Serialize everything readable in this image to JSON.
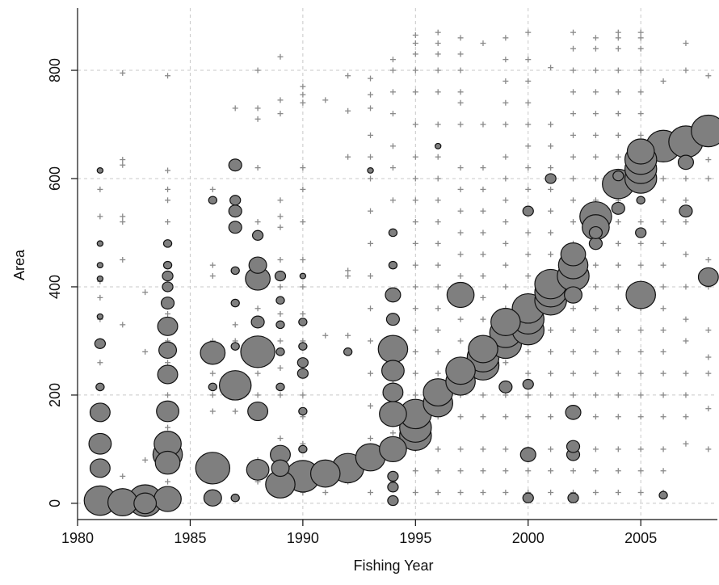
{
  "chart_data": {
    "type": "scatter",
    "title": "",
    "xlabel": "Fishing Year",
    "ylabel": "Area",
    "xlim": [
      1980,
      2008.4
    ],
    "ylim": [
      -30,
      915
    ],
    "xticks": [
      1980,
      1985,
      1990,
      1995,
      2000,
      2005
    ],
    "yticks": [
      0,
      200,
      400,
      600,
      800
    ],
    "grid": true,
    "marker_color": "#7f7f7f",
    "plus_color": "#8a8a8a",
    "plus_markers": [
      {
        "year": 1981,
        "areas": [
          10,
          60,
          110,
          165,
          215,
          260,
          300,
          340,
          380,
          410,
          440,
          480,
          530,
          580,
          615
        ]
      },
      {
        "year": 1982,
        "areas": [
          50,
          330,
          450,
          520,
          530,
          625,
          635,
          795
        ]
      },
      {
        "year": 1983,
        "areas": [
          80,
          280,
          390
        ]
      },
      {
        "year": 1984,
        "areas": [
          40,
          75,
          100,
          140,
          200,
          260,
          300,
          350,
          400,
          440,
          480,
          520,
          560,
          580,
          615,
          790
        ]
      },
      {
        "year": 1986,
        "areas": [
          170,
          200,
          240,
          280,
          300,
          420,
          440,
          560,
          580
        ]
      },
      {
        "year": 1987,
        "areas": [
          170,
          240,
          300,
          330,
          430,
          560,
          630,
          730
        ]
      },
      {
        "year": 1988,
        "areas": [
          40,
          80,
          200,
          240,
          300,
          360,
          400,
          450,
          500,
          520,
          620,
          710,
          730,
          800
        ]
      },
      {
        "year": 1989,
        "areas": [
          20,
          60,
          120,
          200,
          250,
          300,
          350,
          400,
          450,
          510,
          530,
          560,
          720,
          745,
          825
        ]
      },
      {
        "year": 1990,
        "areas": [
          20,
          60,
          110,
          160,
          200,
          240,
          300,
          350,
          400,
          450,
          520,
          580,
          620,
          740,
          755,
          770
        ]
      },
      {
        "year": 1991,
        "areas": [
          20,
          60,
          310,
          745
        ]
      },
      {
        "year": 1992,
        "areas": [
          40,
          80,
          280,
          310,
          420,
          430,
          640,
          725,
          790
        ]
      },
      {
        "year": 1993,
        "areas": [
          20,
          70,
          120,
          180,
          240,
          300,
          360,
          420,
          480,
          540,
          600,
          640,
          680,
          730,
          755,
          785
        ]
      },
      {
        "year": 1994,
        "areas": [
          10,
          40,
          130,
          180,
          220,
          300,
          380,
          440,
          500,
          560,
          620,
          660,
          720,
          760,
          800,
          820
        ]
      },
      {
        "year": 1995,
        "areas": [
          20,
          60,
          100,
          200,
          240,
          280,
          320,
          360,
          400,
          440,
          480,
          520,
          560,
          600,
          640,
          700,
          760,
          800,
          830,
          850,
          865
        ]
      },
      {
        "year": 1996,
        "areas": [
          20,
          60,
          100,
          160,
          240,
          280,
          320,
          360,
          400,
          440,
          480,
          520,
          560,
          600,
          640,
          700,
          760,
          800,
          830,
          850,
          870
        ]
      },
      {
        "year": 1997,
        "areas": [
          20,
          60,
          100,
          160,
          200,
          300,
          340,
          420,
          460,
          500,
          540,
          580,
          620,
          700,
          740,
          760,
          800,
          830,
          860
        ]
      },
      {
        "year": 1998,
        "areas": [
          20,
          60,
          100,
          160,
          200,
          240,
          300,
          340,
          380,
          420,
          460,
          500,
          540,
          580,
          620,
          700,
          850
        ]
      },
      {
        "year": 1999,
        "areas": [
          20,
          60,
          100,
          160,
          200,
          260,
          300,
          360,
          400,
          440,
          480,
          520,
          560,
          600,
          640,
          700,
          740,
          780,
          820,
          860
        ]
      },
      {
        "year": 2000,
        "areas": [
          20,
          60,
          100,
          160,
          200,
          240,
          280,
          320,
          380,
          420,
          460,
          500,
          540,
          580,
          620,
          660,
          700,
          740,
          780,
          820,
          870
        ]
      },
      {
        "year": 2001,
        "areas": [
          20,
          60,
          100,
          160,
          200,
          240,
          280,
          320,
          360,
          420,
          460,
          500,
          540,
          580,
          620,
          660,
          700,
          805
        ]
      },
      {
        "year": 2002,
        "areas": [
          20,
          60,
          100,
          160,
          200,
          240,
          280,
          320,
          360,
          400,
          440,
          480,
          520,
          560,
          600,
          640,
          680,
          720,
          760,
          800,
          840,
          870
        ]
      },
      {
        "year": 2003,
        "areas": [
          20,
          60,
          100,
          160,
          200,
          240,
          280,
          320,
          360,
          400,
          440,
          480,
          520,
          560,
          600,
          640,
          680,
          720,
          760,
          800,
          840,
          860
        ]
      },
      {
        "year": 2004,
        "areas": [
          20,
          60,
          100,
          160,
          200,
          240,
          280,
          320,
          360,
          400,
          440,
          480,
          520,
          560,
          600,
          640,
          680,
          720,
          760,
          800,
          840,
          860,
          870
        ]
      },
      {
        "year": 2005,
        "areas": [
          20,
          60,
          100,
          160,
          200,
          240,
          280,
          320,
          360,
          440,
          480,
          520,
          560,
          600,
          640,
          680,
          720,
          760,
          800,
          840,
          860,
          870
        ]
      },
      {
        "year": 2006,
        "areas": [
          20,
          60,
          100,
          160,
          200,
          240,
          280,
          320,
          360,
          400,
          440,
          480,
          520,
          560,
          600,
          640,
          780
        ]
      },
      {
        "year": 2007,
        "areas": [
          110,
          160,
          200,
          240,
          300,
          340,
          400,
          460,
          520,
          560,
          600,
          800,
          850
        ]
      },
      {
        "year": 2008,
        "areas": [
          100,
          175,
          240,
          270,
          320,
          400,
          450,
          600,
          635,
          790
        ]
      }
    ],
    "bubbles": [
      {
        "year": 1981,
        "area": 5,
        "size": 12
      },
      {
        "year": 1981,
        "area": 65,
        "size": 7
      },
      {
        "year": 1981,
        "area": 110,
        "size": 8
      },
      {
        "year": 1981,
        "area": 168,
        "size": 7
      },
      {
        "year": 1981,
        "area": 215,
        "size": 2
      },
      {
        "year": 1981,
        "area": 295,
        "size": 3
      },
      {
        "year": 1981,
        "area": 345,
        "size": 1
      },
      {
        "year": 1981,
        "area": 415,
        "size": 1
      },
      {
        "year": 1981,
        "area": 440,
        "size": 1
      },
      {
        "year": 1981,
        "area": 480,
        "size": 1
      },
      {
        "year": 1981,
        "area": 615,
        "size": 1
      },
      {
        "year": 1982,
        "area": 2,
        "size": 11
      },
      {
        "year": 1983,
        "area": 5,
        "size": 13
      },
      {
        "year": 1983,
        "area": 0,
        "size": 8
      },
      {
        "year": 1984,
        "area": 8,
        "size": 10
      },
      {
        "year": 1984,
        "area": 75,
        "size": 9
      },
      {
        "year": 1984,
        "area": 90,
        "size": 11
      },
      {
        "year": 1984,
        "area": 110,
        "size": 10
      },
      {
        "year": 1984,
        "area": 170,
        "size": 8
      },
      {
        "year": 1984,
        "area": 238,
        "size": 7
      },
      {
        "year": 1984,
        "area": 283,
        "size": 6
      },
      {
        "year": 1984,
        "area": 327,
        "size": 7
      },
      {
        "year": 1984,
        "area": 370,
        "size": 4
      },
      {
        "year": 1984,
        "area": 400,
        "size": 3
      },
      {
        "year": 1984,
        "area": 420,
        "size": 3
      },
      {
        "year": 1984,
        "area": 440,
        "size": 2
      },
      {
        "year": 1984,
        "area": 480,
        "size": 2
      },
      {
        "year": 1986,
        "area": 10,
        "size": 6
      },
      {
        "year": 1986,
        "area": 65,
        "size": 13
      },
      {
        "year": 1986,
        "area": 215,
        "size": 2
      },
      {
        "year": 1986,
        "area": 278,
        "size": 9
      },
      {
        "year": 1986,
        "area": 560,
        "size": 2
      },
      {
        "year": 1987,
        "area": 10,
        "size": 2
      },
      {
        "year": 1987,
        "area": 218,
        "size": 12
      },
      {
        "year": 1987,
        "area": 290,
        "size": 2
      },
      {
        "year": 1987,
        "area": 370,
        "size": 2
      },
      {
        "year": 1987,
        "area": 430,
        "size": 2
      },
      {
        "year": 1987,
        "area": 510,
        "size": 4
      },
      {
        "year": 1987,
        "area": 540,
        "size": 4
      },
      {
        "year": 1987,
        "area": 560,
        "size": 3
      },
      {
        "year": 1987,
        "area": 625,
        "size": 4
      },
      {
        "year": 1988,
        "area": 62,
        "size": 8
      },
      {
        "year": 1988,
        "area": 170,
        "size": 7
      },
      {
        "year": 1988,
        "area": 280,
        "size": 13
      },
      {
        "year": 1988,
        "area": 335,
        "size": 4
      },
      {
        "year": 1988,
        "area": 415,
        "size": 9
      },
      {
        "year": 1988,
        "area": 440,
        "size": 6
      },
      {
        "year": 1988,
        "area": 495,
        "size": 3
      },
      {
        "year": 1989,
        "area": 35,
        "size": 11
      },
      {
        "year": 1989,
        "area": 65,
        "size": 6
      },
      {
        "year": 1989,
        "area": 90,
        "size": 7
      },
      {
        "year": 1989,
        "area": 215,
        "size": 2
      },
      {
        "year": 1989,
        "area": 280,
        "size": 2
      },
      {
        "year": 1989,
        "area": 330,
        "size": 2
      },
      {
        "year": 1989,
        "area": 375,
        "size": 2
      },
      {
        "year": 1989,
        "area": 420,
        "size": 3
      },
      {
        "year": 1990,
        "area": 50,
        "size": 13
      },
      {
        "year": 1990,
        "area": 100,
        "size": 2
      },
      {
        "year": 1990,
        "area": 170,
        "size": 2
      },
      {
        "year": 1990,
        "area": 240,
        "size": 3
      },
      {
        "year": 1990,
        "area": 260,
        "size": 3
      },
      {
        "year": 1990,
        "area": 290,
        "size": 2
      },
      {
        "year": 1990,
        "area": 335,
        "size": 2
      },
      {
        "year": 1990,
        "area": 420,
        "size": 1
      },
      {
        "year": 1991,
        "area": 55,
        "size": 11
      },
      {
        "year": 1992,
        "area": 65,
        "size": 12
      },
      {
        "year": 1992,
        "area": 280,
        "size": 2
      },
      {
        "year": 1993,
        "area": 85,
        "size": 11
      },
      {
        "year": 1993,
        "area": 615,
        "size": 1
      },
      {
        "year": 1994,
        "area": 5,
        "size": 3
      },
      {
        "year": 1994,
        "area": 30,
        "size": 3
      },
      {
        "year": 1994,
        "area": 50,
        "size": 3
      },
      {
        "year": 1994,
        "area": 100,
        "size": 10
      },
      {
        "year": 1994,
        "area": 165,
        "size": 10
      },
      {
        "year": 1994,
        "area": 205,
        "size": 7
      },
      {
        "year": 1994,
        "area": 245,
        "size": 8
      },
      {
        "year": 1994,
        "area": 285,
        "size": 11
      },
      {
        "year": 1994,
        "area": 340,
        "size": 4
      },
      {
        "year": 1994,
        "area": 385,
        "size": 5
      },
      {
        "year": 1994,
        "area": 440,
        "size": 2
      },
      {
        "year": 1994,
        "area": 500,
        "size": 2
      },
      {
        "year": 1995,
        "area": 125,
        "size": 12
      },
      {
        "year": 1995,
        "area": 140,
        "size": 12
      },
      {
        "year": 1995,
        "area": 165,
        "size": 12
      },
      {
        "year": 1996,
        "area": 185,
        "size": 11
      },
      {
        "year": 1996,
        "area": 205,
        "size": 11
      },
      {
        "year": 1996,
        "area": 660,
        "size": 1
      },
      {
        "year": 1997,
        "area": 225,
        "size": 11
      },
      {
        "year": 1997,
        "area": 245,
        "size": 11
      },
      {
        "year": 1997,
        "area": 385,
        "size": 10
      },
      {
        "year": 1998,
        "area": 255,
        "size": 12
      },
      {
        "year": 1998,
        "area": 270,
        "size": 12
      },
      {
        "year": 1998,
        "area": 285,
        "size": 11
      },
      {
        "year": 1999,
        "area": 215,
        "size": 4
      },
      {
        "year": 1999,
        "area": 295,
        "size": 12
      },
      {
        "year": 1999,
        "area": 315,
        "size": 12
      },
      {
        "year": 1999,
        "area": 335,
        "size": 11
      },
      {
        "year": 2000,
        "area": 10,
        "size": 3
      },
      {
        "year": 2000,
        "area": 90,
        "size": 5
      },
      {
        "year": 2000,
        "area": 220,
        "size": 3
      },
      {
        "year": 2000,
        "area": 320,
        "size": 12
      },
      {
        "year": 2000,
        "area": 340,
        "size": 12
      },
      {
        "year": 2000,
        "area": 360,
        "size": 12
      },
      {
        "year": 2000,
        "area": 540,
        "size": 3
      },
      {
        "year": 2001,
        "area": 375,
        "size": 12
      },
      {
        "year": 2001,
        "area": 390,
        "size": 12
      },
      {
        "year": 2001,
        "area": 405,
        "size": 12
      },
      {
        "year": 2001,
        "area": 600,
        "size": 3
      },
      {
        "year": 2002,
        "area": 10,
        "size": 3
      },
      {
        "year": 2002,
        "area": 90,
        "size": 4
      },
      {
        "year": 2002,
        "area": 105,
        "size": 4
      },
      {
        "year": 2002,
        "area": 168,
        "size": 5
      },
      {
        "year": 2002,
        "area": 385,
        "size": 6
      },
      {
        "year": 2002,
        "area": 420,
        "size": 12
      },
      {
        "year": 2002,
        "area": 440,
        "size": 11
      },
      {
        "year": 2002,
        "area": 460,
        "size": 9
      },
      {
        "year": 2003,
        "area": 480,
        "size": 4
      },
      {
        "year": 2003,
        "area": 500,
        "size": 4
      },
      {
        "year": 2003,
        "area": 510,
        "size": 10
      },
      {
        "year": 2003,
        "area": 530,
        "size": 12
      },
      {
        "year": 2004,
        "area": 545,
        "size": 4
      },
      {
        "year": 2004,
        "area": 590,
        "size": 12
      },
      {
        "year": 2004,
        "area": 605,
        "size": 3
      },
      {
        "year": 2005,
        "area": 385,
        "size": 11
      },
      {
        "year": 2005,
        "area": 500,
        "size": 3
      },
      {
        "year": 2005,
        "area": 560,
        "size": 2
      },
      {
        "year": 2005,
        "area": 600,
        "size": 12
      },
      {
        "year": 2005,
        "area": 618,
        "size": 12
      },
      {
        "year": 2005,
        "area": 635,
        "size": 12
      },
      {
        "year": 2005,
        "area": 650,
        "size": 10
      },
      {
        "year": 2006,
        "area": 15,
        "size": 2
      },
      {
        "year": 2006,
        "area": 660,
        "size": 13
      },
      {
        "year": 2007,
        "area": 540,
        "size": 4
      },
      {
        "year": 2007,
        "area": 630,
        "size": 5
      },
      {
        "year": 2007,
        "area": 668,
        "size": 13
      },
      {
        "year": 2008,
        "area": 418,
        "size": 7
      },
      {
        "year": 2008,
        "area": 688,
        "size": 13
      }
    ]
  }
}
